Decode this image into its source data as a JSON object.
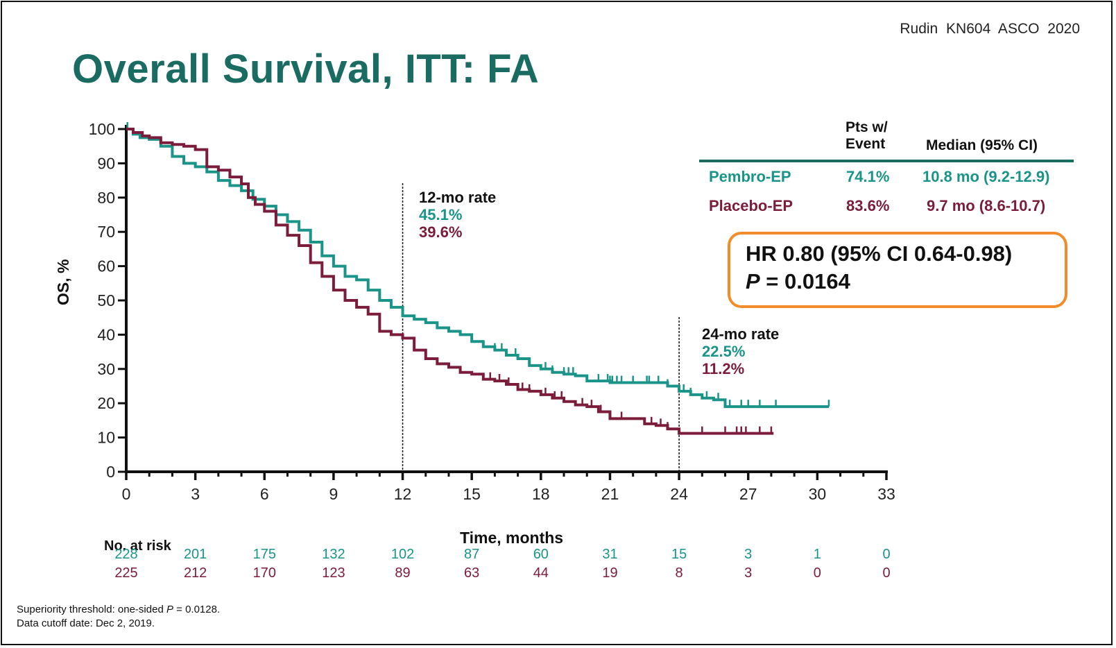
{
  "citation": "Rudin  KN604  ASCO  2020",
  "title": "Overall Survival, ITT: FA",
  "colors": {
    "title": "#1a6b62",
    "pembro": "#1a9488",
    "placebo": "#7a1c3a",
    "hr_box_border": "#f28c28",
    "axis": "#111111"
  },
  "summary_table": {
    "headers": [
      "",
      "Pts w/ Event",
      "Median (95% CI)"
    ],
    "header_pts_line1": "Pts w/",
    "header_pts_line2": "Event",
    "header_median": "Median (95% CI)",
    "rows": [
      {
        "arm": "Pembro-EP",
        "pts_with_event": "74.1%",
        "median": "10.8 mo (9.2-12.9)"
      },
      {
        "arm": "Placebo-EP",
        "pts_with_event": "83.6%",
        "median": "9.7 mo (8.6-10.7)"
      }
    ]
  },
  "hr_box": {
    "line1": "HR 0.80 (95%  CI 0.64-0.98)",
    "p_label": "P",
    "p_value": " = 0.0164"
  },
  "rates": {
    "m12": {
      "title": "12-mo rate",
      "pembro": "45.1%",
      "placebo": "39.6%"
    },
    "m24": {
      "title": "24-mo rate",
      "pembro": "22.5%",
      "placebo": "11.2%"
    }
  },
  "at_risk": {
    "title": "No. at risk",
    "pembro": [
      "228",
      "201",
      "175",
      "132",
      "102",
      "87",
      "60",
      "31",
      "15",
      "3",
      "1",
      "0"
    ],
    "placebo": [
      "225",
      "212",
      "170",
      "123",
      "89",
      "63",
      "44",
      "19",
      "8",
      "3",
      "0",
      "0"
    ]
  },
  "footnotes": {
    "line1_prefix": "Superiority  threshold:  one-sided ",
    "line1_p": "P",
    "line1_suffix": " = 0.0128.",
    "line2": "Data  cutoff date:  Dec 2, 2019."
  },
  "chart_data": {
    "type": "line",
    "title": "Overall Survival, ITT: FA",
    "xlabel": "Time, months",
    "ylabel": "OS, %",
    "xlim": [
      0,
      33
    ],
    "ylim": [
      0,
      100
    ],
    "xticks": [
      0,
      3,
      6,
      9,
      12,
      15,
      18,
      21,
      24,
      27,
      30,
      33
    ],
    "yticks": [
      0,
      10,
      20,
      30,
      40,
      50,
      60,
      70,
      80,
      90,
      100
    ],
    "grid": false,
    "step": true,
    "reference_lines_x": [
      12,
      24
    ],
    "series": [
      {
        "name": "Pembro-EP",
        "color": "#1a9488",
        "x": [
          0,
          0.3,
          0.6,
          1.0,
          1.5,
          2.0,
          2.5,
          3.0,
          3.5,
          4.0,
          4.5,
          5.0,
          5.5,
          6.0,
          6.5,
          7.0,
          7.5,
          8.0,
          8.5,
          9.0,
          9.5,
          10.0,
          10.5,
          11.0,
          11.5,
          12.0,
          12.5,
          13.0,
          13.5,
          14.0,
          14.5,
          15.0,
          15.5,
          16.0,
          16.5,
          17.0,
          17.5,
          18.0,
          18.5,
          19.0,
          19.5,
          20.0,
          21.0,
          22.0,
          23.0,
          23.5,
          24.0,
          24.5,
          25.0,
          25.5,
          26.0,
          27.0,
          28.0,
          29.0,
          30.5
        ],
        "y": [
          100,
          98.5,
          97.5,
          97,
          95,
          92,
          90,
          89,
          87.5,
          85,
          83.5,
          82,
          79.5,
          77.5,
          75,
          73,
          70.5,
          67,
          63,
          60,
          57,
          56,
          53,
          50,
          48,
          45.5,
          44.5,
          43.5,
          42,
          41,
          40,
          38,
          36.5,
          35.5,
          34,
          33,
          31,
          30,
          29,
          28.5,
          28,
          26.5,
          26,
          26,
          26,
          25,
          23.5,
          22.5,
          21.5,
          21,
          19,
          19,
          19,
          19,
          19
        ],
        "censor_x": [
          0.05,
          1.5,
          16.0,
          16.3,
          16.9,
          17.5,
          18.2,
          18.5,
          19.0,
          19.2,
          19.4,
          20.5,
          20.9,
          21.0,
          21.1,
          21.3,
          21.5,
          22.0,
          22.6,
          22.7,
          23.1,
          23.5,
          24.2,
          24.5,
          25.2,
          25.7,
          26.2,
          26.7,
          27.0,
          27.5,
          28.2,
          30.5
        ],
        "at_risk": [
          228,
          201,
          175,
          132,
          102,
          87,
          60,
          31,
          15,
          3,
          1,
          0
        ],
        "rate_12mo": 45.1,
        "rate_24mo": 22.5
      },
      {
        "name": "Placebo-EP",
        "color": "#7a1c3a",
        "x": [
          0,
          0.3,
          0.7,
          1.0,
          1.5,
          2.0,
          2.5,
          3.0,
          3.5,
          4.0,
          4.5,
          5.0,
          5.3,
          5.6,
          6.0,
          6.5,
          7.0,
          7.5,
          8.0,
          8.5,
          9.0,
          9.5,
          10.0,
          10.5,
          11.0,
          11.5,
          12.0,
          12.5,
          13.0,
          13.5,
          14.0,
          14.5,
          15.0,
          15.5,
          16.0,
          16.5,
          17.0,
          17.5,
          18.0,
          18.5,
          19.0,
          19.5,
          20.0,
          20.5,
          21.0,
          22.0,
          22.5,
          23.0,
          23.5,
          24.0,
          25.0,
          26.0,
          27.0,
          28.1
        ],
        "y": [
          100,
          99,
          98,
          97.5,
          96,
          95.5,
          95,
          94,
          89,
          88,
          86,
          84,
          80,
          78,
          76,
          72,
          69,
          66,
          61,
          57,
          53,
          50,
          48,
          46,
          41,
          40,
          39,
          35.5,
          33,
          31.5,
          30.5,
          29,
          28.5,
          27,
          26.5,
          25.5,
          24,
          23.5,
          22.5,
          21.5,
          20.5,
          19.5,
          19,
          17.5,
          15.5,
          15.5,
          14,
          13.5,
          12.5,
          11.2,
          11.2,
          11.2,
          11.2,
          11.2
        ],
        "censor_x": [
          15.8,
          16.2,
          16.6,
          17.2,
          17.5,
          18.2,
          18.6,
          18.9,
          19.8,
          20.2,
          20.6,
          21.5,
          22.8,
          23.2,
          23.5,
          25.0,
          26.0,
          26.5,
          26.7,
          26.9,
          27.5,
          28.0
        ],
        "at_risk": [
          225,
          212,
          170,
          123,
          89,
          63,
          44,
          19,
          8,
          3,
          0,
          0
        ],
        "rate_12mo": 39.6,
        "rate_24mo": 11.2
      }
    ],
    "annotations": [
      "12-mo rate 45.1% / 39.6%",
      "24-mo rate 22.5% / 11.2%",
      "HR 0.80 (95% CI 0.64-0.98)",
      "P = 0.0164"
    ]
  }
}
